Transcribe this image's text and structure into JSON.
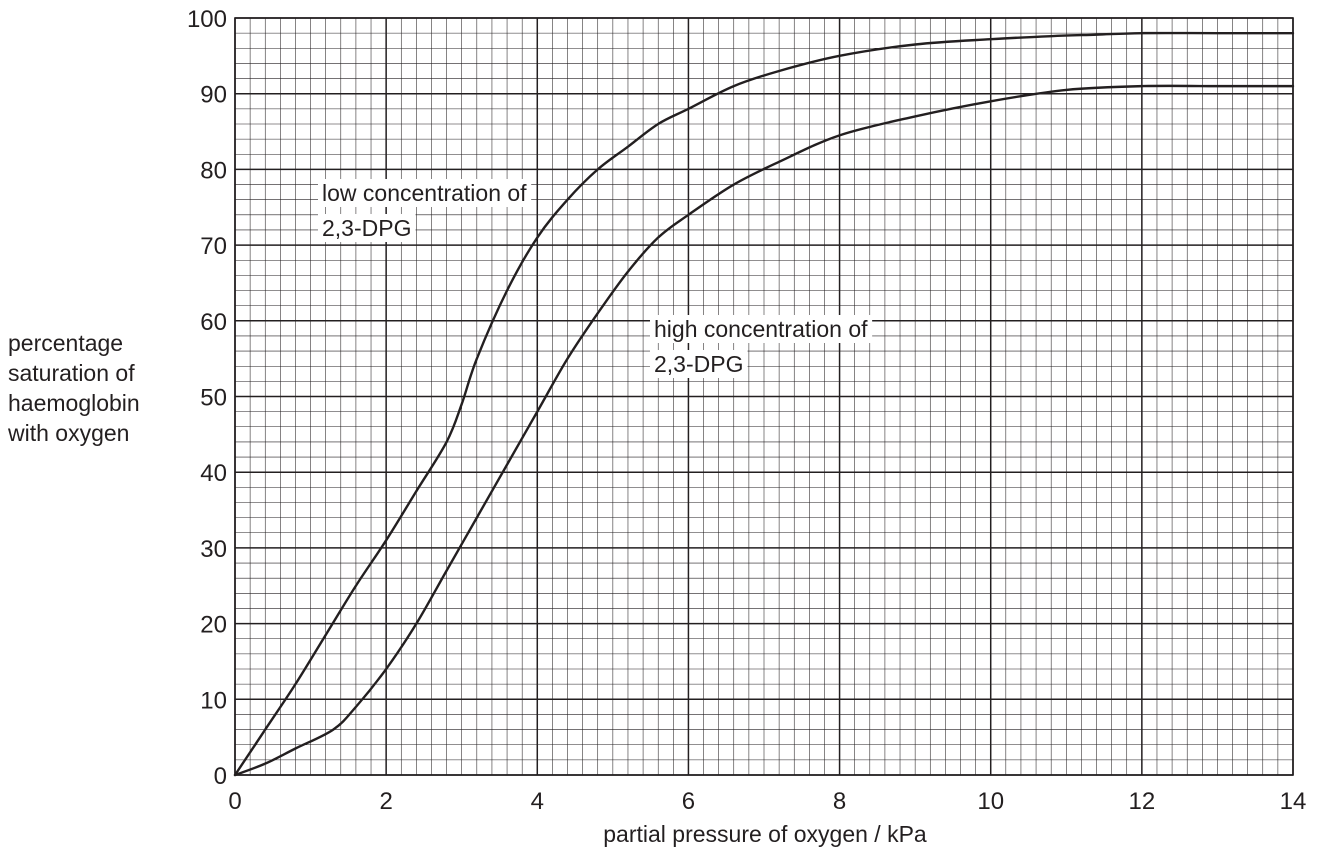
{
  "chart_data": {
    "type": "line",
    "title": "",
    "xlabel": "partial pressure of oxygen / kPa",
    "ylabel_lines": [
      "percentage",
      "saturation of",
      "haemoglobin",
      "with oxygen"
    ],
    "xlim": [
      0,
      14
    ],
    "ylim": [
      0,
      100
    ],
    "x_ticks": [
      "0",
      "2",
      "4",
      "6",
      "8",
      "10",
      "12",
      "14"
    ],
    "y_ticks": [
      "0",
      "10",
      "20",
      "30",
      "40",
      "50",
      "60",
      "70",
      "80",
      "90",
      "100"
    ],
    "grid": true,
    "series": [
      {
        "name": "low concentration of 2,3-DPG",
        "label_lines": [
          "low concentration of",
          "2,3-DPG"
        ],
        "x": [
          0,
          0.4,
          0.8,
          1.2,
          1.6,
          2.0,
          2.4,
          2.8,
          3.0,
          3.2,
          3.6,
          4.0,
          4.4,
          4.8,
          5.2,
          5.6,
          6.0,
          6.6,
          7.2,
          8.0,
          9.0,
          10.0,
          10.8,
          11.4,
          12.0,
          13.0,
          14.0
        ],
        "y": [
          0,
          6,
          12,
          18.5,
          25,
          31,
          37.5,
          44,
          49,
          55,
          64,
          71,
          76,
          80,
          83,
          86,
          88,
          91,
          93,
          95,
          96.5,
          97.2,
          97.6,
          97.8,
          98,
          98,
          98
        ]
      },
      {
        "name": "high concentration of 2,3-DPG",
        "label_lines": [
          "high concentration of",
          "2,3-DPG"
        ],
        "x": [
          0,
          0.4,
          0.8,
          1.3,
          1.6,
          2.0,
          2.4,
          2.8,
          3.2,
          3.6,
          4.0,
          4.4,
          4.8,
          5.2,
          5.6,
          6.0,
          6.6,
          7.2,
          8.0,
          9.0,
          10.0,
          11.0,
          12.0,
          13.0,
          13.3,
          14.0
        ],
        "y": [
          0,
          1.5,
          3.5,
          6,
          9,
          14,
          20,
          27,
          34,
          41,
          48,
          55,
          61,
          66.5,
          71,
          74,
          78,
          81,
          84.5,
          87,
          89,
          90.5,
          91,
          91,
          91,
          91
        ]
      }
    ]
  }
}
